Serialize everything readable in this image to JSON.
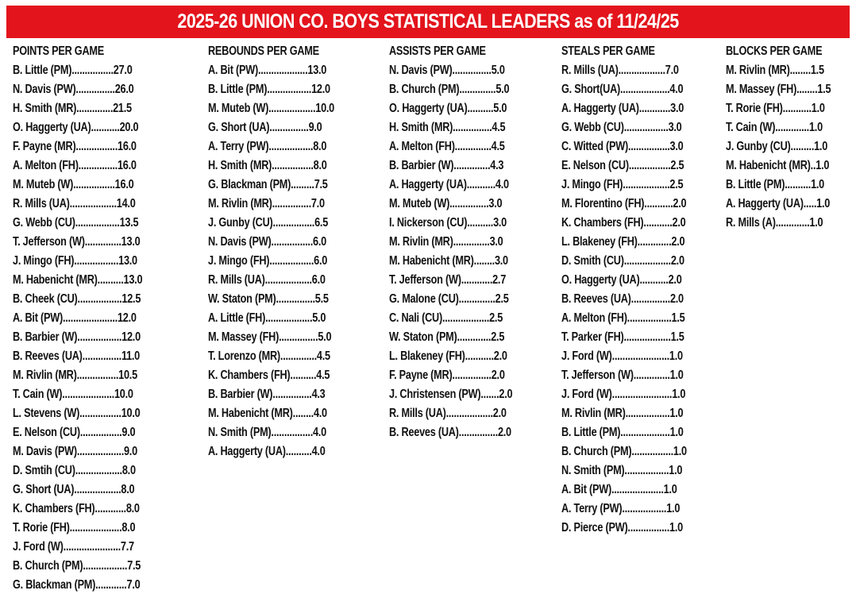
{
  "title": "2025-26 UNION CO. BOYS STATISTICAL LEADERS as of 11/24/25",
  "colors": {
    "banner": "#e3141c",
    "banner_text": "#ffffff",
    "text": "#111111"
  },
  "categories": [
    {
      "title": "POINTS PER GAME",
      "rows": [
        "B. Little (PM)................27.0",
        "N. Davis (PW)...............26.0",
        "H. Smith (MR)..............21.5",
        "O. Haggerty (UA)...........20.0",
        "F. Payne (MR)................16.0",
        "A. Melton (FH)...............16.0",
        "M. Muteb (W)................16.0",
        "R. Mills (UA)..................14.0",
        "G. Webb (CU).................13.5",
        "T. Jefferson (W)..............13.0",
        "J. Mingo (FH).................13.0",
        "M. Habenicht (MR)..........13.0",
        "B. Cheek (CU).................12.5",
        "A. Bit (PW).....................12.0",
        "B. Barbier (W).................12.0",
        "B. Reeves (UA)...............11.0",
        "M. Rivlin (MR)................10.5",
        "T. Cain (W)....................10.0",
        "L. Stevens (W)................10.0",
        "E. Nelson (CU)................9.0",
        "M. Davis (PW)..................9.0",
        "D. Smtih (CU)..................8.0",
        "G. Short (UA)..................8.0",
        "K. Chambers (FH)............8.0",
        "T. Rorie (FH)....................8.0",
        "J. Ford (W)......................7.7",
        "B. Church (PM).................7.5",
        "G. Blackman (PM)............7.0"
      ]
    },
    {
      "title": "REBOUNDS PER GAME",
      "rows": [
        "A. Bit (PW)...................13.0",
        "B. Little (PM).................12.0",
        "M. Muteb (W)..................10.0",
        "G. Short (UA)...............9.0",
        "A. Terry (PW).................8.0",
        "H. Smith (MR)................8.0",
        "G. Blackman (PM).........7.5",
        "M. Rivlin (MR)...............7.0",
        "J. Gunby (CU)................6.5",
        "N. Davis (PW)................6.0",
        "J. Mingo (FH).................6.0",
        "R. Mills (UA)..................6.0",
        "W. Staton (PM)...............5.5",
        "A. Little (FH)..................5.0",
        "M. Massey (FH)...............5.0",
        "T. Lorenzo (MR)..............4.5",
        "K. Chambers (FH)..........4.5",
        "B. Barbier (W)...............4.3",
        "M. Habenicht (MR)........4.0",
        "N. Smith (PM)................4.0",
        "A. Haggerty (UA)..........4.0"
      ]
    },
    {
      "title": "ASSISTS PER GAME",
      "rows": [
        "N. Davis (PW)...............5.0",
        "B. Church (PM)..............5.0",
        "O. Haggerty (UA)..........5.0",
        "H. Smith (MR)...............4.5",
        "A. Melton (FH)..............4.5",
        "B. Barbier (W)..............4.3",
        "A. Haggerty (UA)...........4.0",
        "M. Muteb (W)...............3.0",
        "I. Nickerson (CU)..........3.0",
        "M. Rivlin (MR)..............3.0",
        "M. Habenicht (MR)........3.0",
        "T. Jefferson (W)............2.7",
        "G. Malone (CU)..............2.5",
        "C. Nali (CU)..................2.5",
        "W. Staton (PM).............2.5",
        "L. Blakeney (FH)...........2.0",
        "F. Payne (MR)...............2.0",
        "J. Christensen (PW).......2.0",
        "R. Mills (UA)..................2.0",
        "B. Reeves (UA)...............2.0"
      ]
    },
    {
      "title": "STEALS PER GAME",
      "rows": [
        "R. Mills (UA)..................7.0",
        "G. Short(UA)...................4.0",
        "A. Haggerty (UA)............3.0",
        "G. Webb (CU).................3.0",
        "C. Witted (PW)................3.0",
        "E. Nelson (CU)................2.5",
        "J. Mingo (FH)..................2.5",
        "M. Florentino (FH)...........2.0",
        "K. Chambers (FH)...........2.0",
        "L. Blakeney (FH).............2.0",
        "D. Smith (CU)..................2.0",
        "O. Haggerty (UA)...........2.0",
        "B. Reeves (UA)...............2.0",
        "A. Melton (FH).................1.5",
        "T. Parker (FH)..................1.5",
        "J. Ford (W)......................1.0",
        "T. Jefferson (W)..............1.0",
        "J. Ford (W).......................1.0",
        "M. Rivlin (MR).................1.0",
        "B. Little (PM)...................1.0",
        "B. Church (PM)................1.0",
        "N. Smith (PM).................1.0",
        "A. Bit (PW)....................1.0",
        "A. Terry (PW).................1.0",
        "D. Pierce (PW)................1.0"
      ]
    },
    {
      "title": "BLOCKS PER GAME",
      "rows": [
        "M. Rivlin (MR)........1.5",
        "M. Massey (FH)........1.5",
        "T. Rorie (FH)...........1.0",
        "T. Cain (W).............1.0",
        "J. Gunby (CU).........1.0",
        "M. Habenicht (MR)..1.0",
        "B. Little (PM)..........1.0",
        "A. Haggerty (UA).....1.0",
        "R. Mills (A).............1.0"
      ]
    }
  ]
}
